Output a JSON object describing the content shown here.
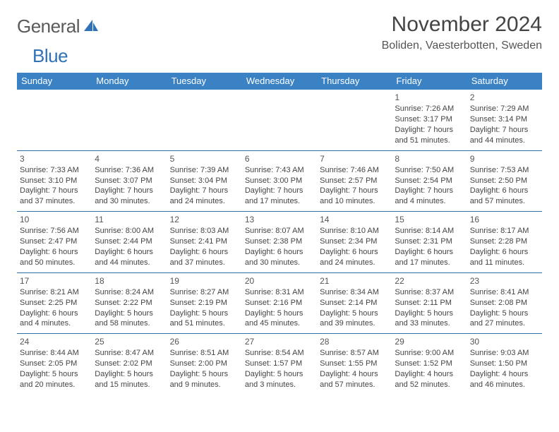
{
  "brand": {
    "word1": "General",
    "word2": "Blue"
  },
  "header": {
    "title": "November 2024",
    "location": "Boliden, Vaesterbotten, Sweden"
  },
  "colors": {
    "header_bg": "#3a82c4",
    "header_fg": "#ffffff",
    "cell_border": "#2f6fa8",
    "text": "#444444",
    "logo_gray": "#5a5a5a",
    "logo_blue": "#2f72b8"
  },
  "calendar": {
    "day_names": [
      "Sunday",
      "Monday",
      "Tuesday",
      "Wednesday",
      "Thursday",
      "Friday",
      "Saturday"
    ],
    "leading_blanks": 5,
    "days": [
      {
        "n": 1,
        "sunrise": "7:26 AM",
        "sunset": "3:17 PM",
        "daylight": "7 hours and 51 minutes."
      },
      {
        "n": 2,
        "sunrise": "7:29 AM",
        "sunset": "3:14 PM",
        "daylight": "7 hours and 44 minutes."
      },
      {
        "n": 3,
        "sunrise": "7:33 AM",
        "sunset": "3:10 PM",
        "daylight": "7 hours and 37 minutes."
      },
      {
        "n": 4,
        "sunrise": "7:36 AM",
        "sunset": "3:07 PM",
        "daylight": "7 hours and 30 minutes."
      },
      {
        "n": 5,
        "sunrise": "7:39 AM",
        "sunset": "3:04 PM",
        "daylight": "7 hours and 24 minutes."
      },
      {
        "n": 6,
        "sunrise": "7:43 AM",
        "sunset": "3:00 PM",
        "daylight": "7 hours and 17 minutes."
      },
      {
        "n": 7,
        "sunrise": "7:46 AM",
        "sunset": "2:57 PM",
        "daylight": "7 hours and 10 minutes."
      },
      {
        "n": 8,
        "sunrise": "7:50 AM",
        "sunset": "2:54 PM",
        "daylight": "7 hours and 4 minutes."
      },
      {
        "n": 9,
        "sunrise": "7:53 AM",
        "sunset": "2:50 PM",
        "daylight": "6 hours and 57 minutes."
      },
      {
        "n": 10,
        "sunrise": "7:56 AM",
        "sunset": "2:47 PM",
        "daylight": "6 hours and 50 minutes."
      },
      {
        "n": 11,
        "sunrise": "8:00 AM",
        "sunset": "2:44 PM",
        "daylight": "6 hours and 44 minutes."
      },
      {
        "n": 12,
        "sunrise": "8:03 AM",
        "sunset": "2:41 PM",
        "daylight": "6 hours and 37 minutes."
      },
      {
        "n": 13,
        "sunrise": "8:07 AM",
        "sunset": "2:38 PM",
        "daylight": "6 hours and 30 minutes."
      },
      {
        "n": 14,
        "sunrise": "8:10 AM",
        "sunset": "2:34 PM",
        "daylight": "6 hours and 24 minutes."
      },
      {
        "n": 15,
        "sunrise": "8:14 AM",
        "sunset": "2:31 PM",
        "daylight": "6 hours and 17 minutes."
      },
      {
        "n": 16,
        "sunrise": "8:17 AM",
        "sunset": "2:28 PM",
        "daylight": "6 hours and 11 minutes."
      },
      {
        "n": 17,
        "sunrise": "8:21 AM",
        "sunset": "2:25 PM",
        "daylight": "6 hours and 4 minutes."
      },
      {
        "n": 18,
        "sunrise": "8:24 AM",
        "sunset": "2:22 PM",
        "daylight": "5 hours and 58 minutes."
      },
      {
        "n": 19,
        "sunrise": "8:27 AM",
        "sunset": "2:19 PM",
        "daylight": "5 hours and 51 minutes."
      },
      {
        "n": 20,
        "sunrise": "8:31 AM",
        "sunset": "2:16 PM",
        "daylight": "5 hours and 45 minutes."
      },
      {
        "n": 21,
        "sunrise": "8:34 AM",
        "sunset": "2:14 PM",
        "daylight": "5 hours and 39 minutes."
      },
      {
        "n": 22,
        "sunrise": "8:37 AM",
        "sunset": "2:11 PM",
        "daylight": "5 hours and 33 minutes."
      },
      {
        "n": 23,
        "sunrise": "8:41 AM",
        "sunset": "2:08 PM",
        "daylight": "5 hours and 27 minutes."
      },
      {
        "n": 24,
        "sunrise": "8:44 AM",
        "sunset": "2:05 PM",
        "daylight": "5 hours and 20 minutes."
      },
      {
        "n": 25,
        "sunrise": "8:47 AM",
        "sunset": "2:02 PM",
        "daylight": "5 hours and 15 minutes."
      },
      {
        "n": 26,
        "sunrise": "8:51 AM",
        "sunset": "2:00 PM",
        "daylight": "5 hours and 9 minutes."
      },
      {
        "n": 27,
        "sunrise": "8:54 AM",
        "sunset": "1:57 PM",
        "daylight": "5 hours and 3 minutes."
      },
      {
        "n": 28,
        "sunrise": "8:57 AM",
        "sunset": "1:55 PM",
        "daylight": "4 hours and 57 minutes."
      },
      {
        "n": 29,
        "sunrise": "9:00 AM",
        "sunset": "1:52 PM",
        "daylight": "4 hours and 52 minutes."
      },
      {
        "n": 30,
        "sunrise": "9:03 AM",
        "sunset": "1:50 PM",
        "daylight": "4 hours and 46 minutes."
      }
    ],
    "labels": {
      "sunrise_prefix": "Sunrise: ",
      "sunset_prefix": "Sunset: ",
      "daylight_prefix": "Daylight: "
    }
  }
}
